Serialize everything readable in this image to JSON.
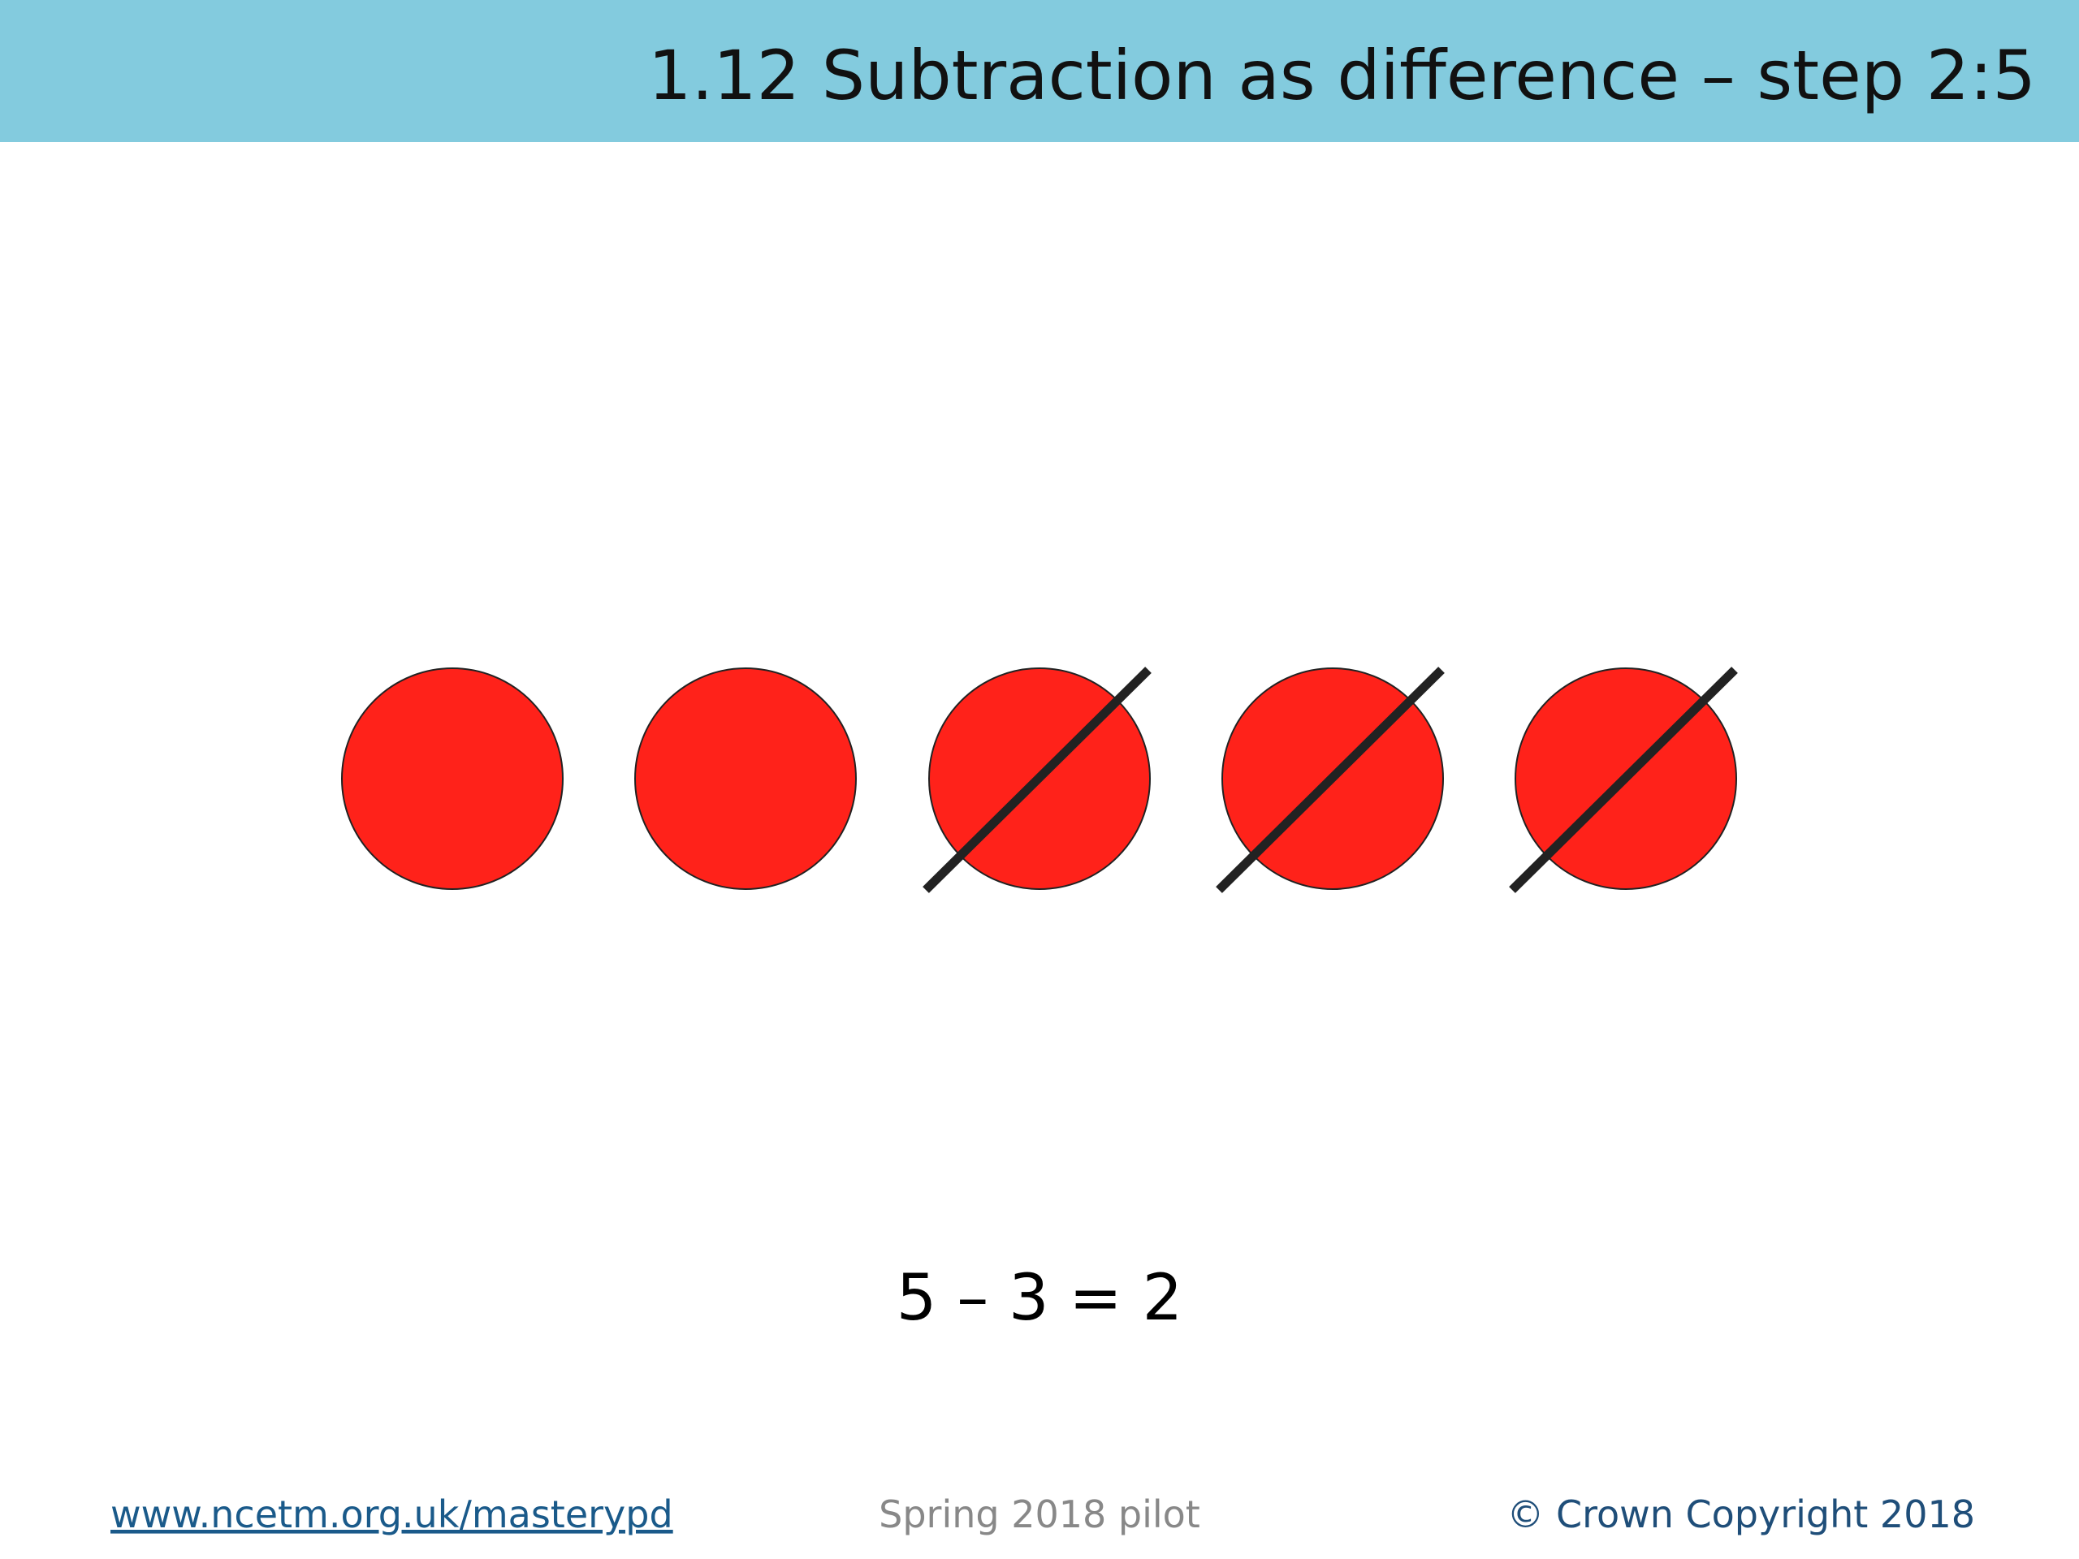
{
  "header": {
    "title": "1.12 Subtraction as difference – step 2:5"
  },
  "equation": "5 – 3 = 2",
  "footer": {
    "link": "www.ncetm.org.uk/masterypd",
    "center": "Spring 2018 pilot",
    "copyright": "© Crown Copyright 2018"
  }
}
